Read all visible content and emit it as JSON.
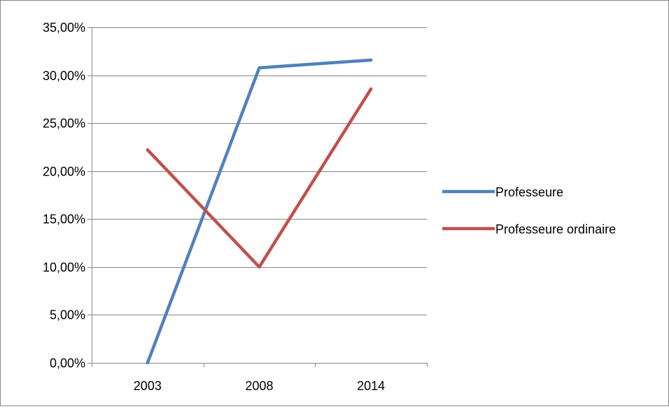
{
  "chart_data": {
    "type": "line",
    "categories": [
      "2003",
      "2008",
      "2014"
    ],
    "series": [
      {
        "name": "Professeure",
        "values": [
          0.0,
          30.77,
          31.58
        ],
        "color": "#4F81BD"
      },
      {
        "name": "Professeure ordinaire",
        "values": [
          22.22,
          10.0,
          28.57
        ],
        "color": "#C0504D"
      }
    ],
    "ylim": [
      0,
      35
    ],
    "y_ticks": [
      0,
      5,
      10,
      15,
      20,
      25,
      30,
      35
    ],
    "y_tick_labels": [
      "0,00%",
      "5,00%",
      "10,00%",
      "15,00%",
      "20,00%",
      "25,00%",
      "30,00%",
      "35,00%"
    ],
    "grid": "horizontal",
    "legend_position": "right"
  }
}
